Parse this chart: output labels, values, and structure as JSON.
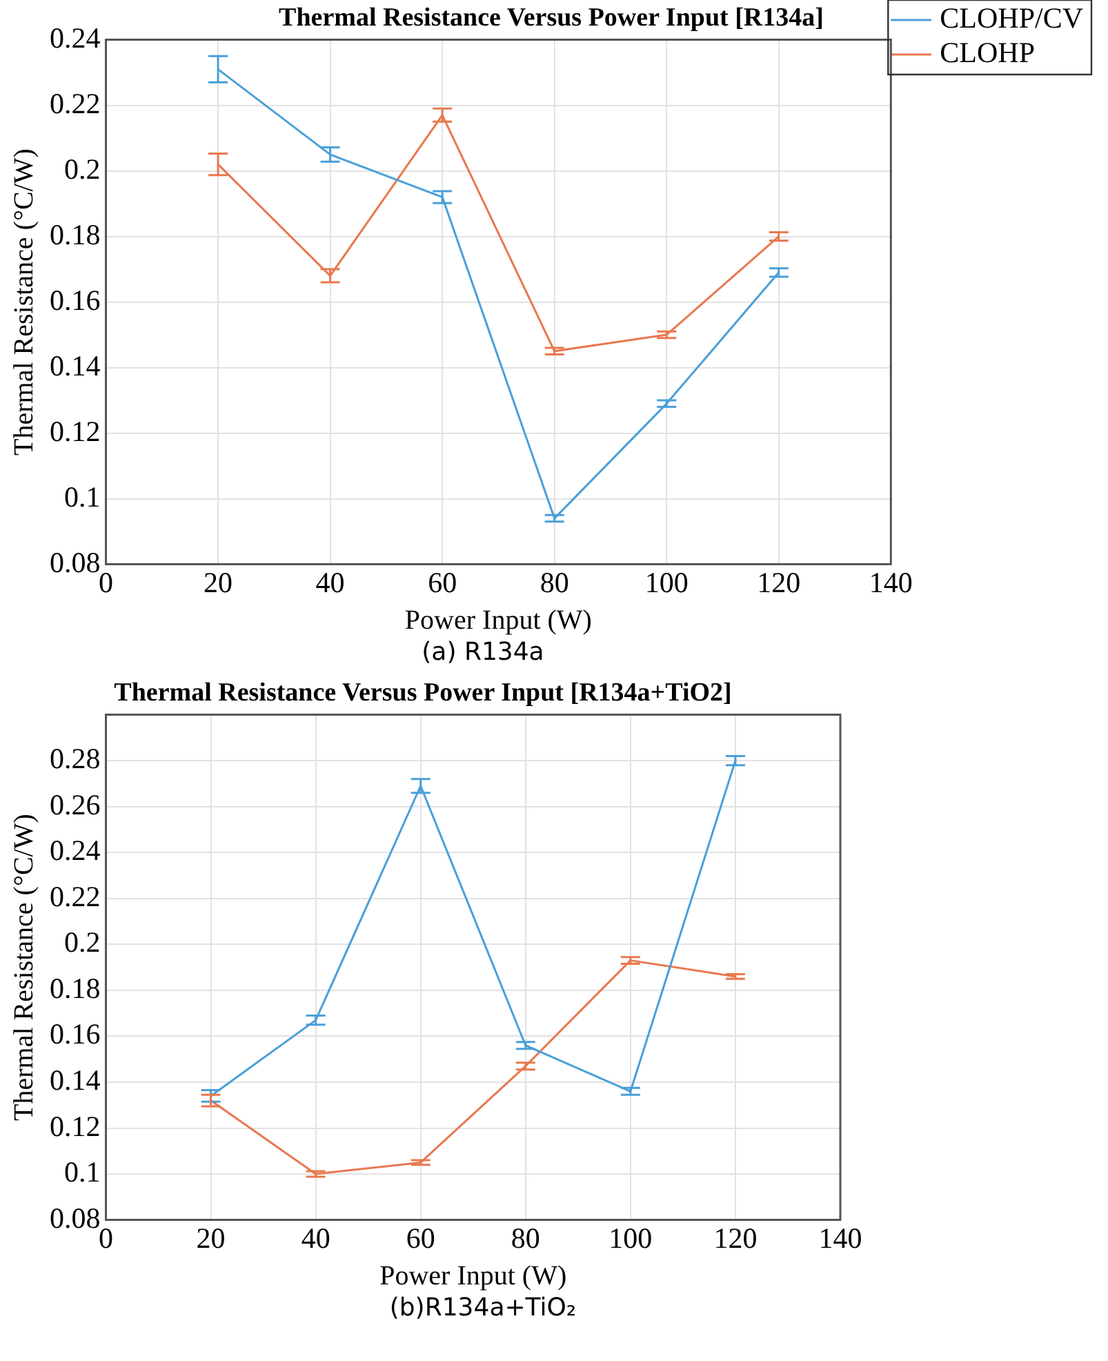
{
  "chart_data": [
    {
      "type": "line",
      "title": "Thermal Resistance Versus Power Input [R134a]",
      "xlabel": "Power Input (W)",
      "ylabel": "Thermal Resistance (°C/W)",
      "x": [
        20,
        40,
        60,
        80,
        100,
        120
      ],
      "xlim": [
        0,
        140
      ],
      "xticks": [
        0,
        20,
        40,
        60,
        80,
        100,
        120,
        140
      ],
      "ylim": [
        0.08,
        0.24
      ],
      "yticks": [
        0.08,
        0.1,
        0.12,
        0.14,
        0.16,
        0.18,
        0.2,
        0.22,
        0.24
      ],
      "grid": true,
      "legend": "top right",
      "line_style": "solid",
      "annotations": [
        "(a) R134a"
      ],
      "series": [
        {
          "name": "CLOHP/CV",
          "color": "#4a9fd8",
          "values": [
            0.231,
            0.205,
            0.192,
            0.094,
            0.129,
            0.169
          ],
          "errors": [
            0.004,
            0.0022,
            0.0018,
            0.001,
            0.001,
            0.0013
          ]
        },
        {
          "name": "CLOHP",
          "color": "#e8784e",
          "values": [
            0.202,
            0.168,
            0.217,
            0.145,
            0.15,
            0.18
          ],
          "errors": [
            0.0033,
            0.002,
            0.002,
            0.001,
            0.001,
            0.0013
          ]
        }
      ]
    },
    {
      "type": "line",
      "title": "Thermal Resistance Versus Power Input [R134a+TiO2]",
      "xlabel": "Power Input (W)",
      "ylabel": "Thermal Resistance (°C/W)",
      "x": [
        20,
        40,
        60,
        80,
        100,
        120
      ],
      "xlim": [
        0,
        140
      ],
      "xticks": [
        0,
        20,
        40,
        60,
        80,
        100,
        120,
        140
      ],
      "ylim": [
        0.08,
        0.3
      ],
      "yticks": [
        0.08,
        0.1,
        0.12,
        0.14,
        0.16,
        0.18,
        0.2,
        0.22,
        0.24,
        0.26,
        0.28
      ],
      "grid": true,
      "legend": false,
      "line_style": "solid",
      "annotations": [
        "(b)R134a+TiO₂"
      ],
      "series": [
        {
          "color": "#4a9fd8",
          "values": [
            0.134,
            0.167,
            0.269,
            0.156,
            0.136,
            0.28
          ],
          "errors": [
            0.0025,
            0.002,
            0.003,
            0.0015,
            0.0015,
            0.002
          ]
        },
        {
          "color": "#e8784e",
          "values": [
            0.132,
            0.1,
            0.105,
            0.147,
            0.193,
            0.186
          ],
          "errors": [
            0.0025,
            0.0012,
            0.001,
            0.0015,
            0.0015,
            0.001
          ]
        }
      ]
    }
  ]
}
